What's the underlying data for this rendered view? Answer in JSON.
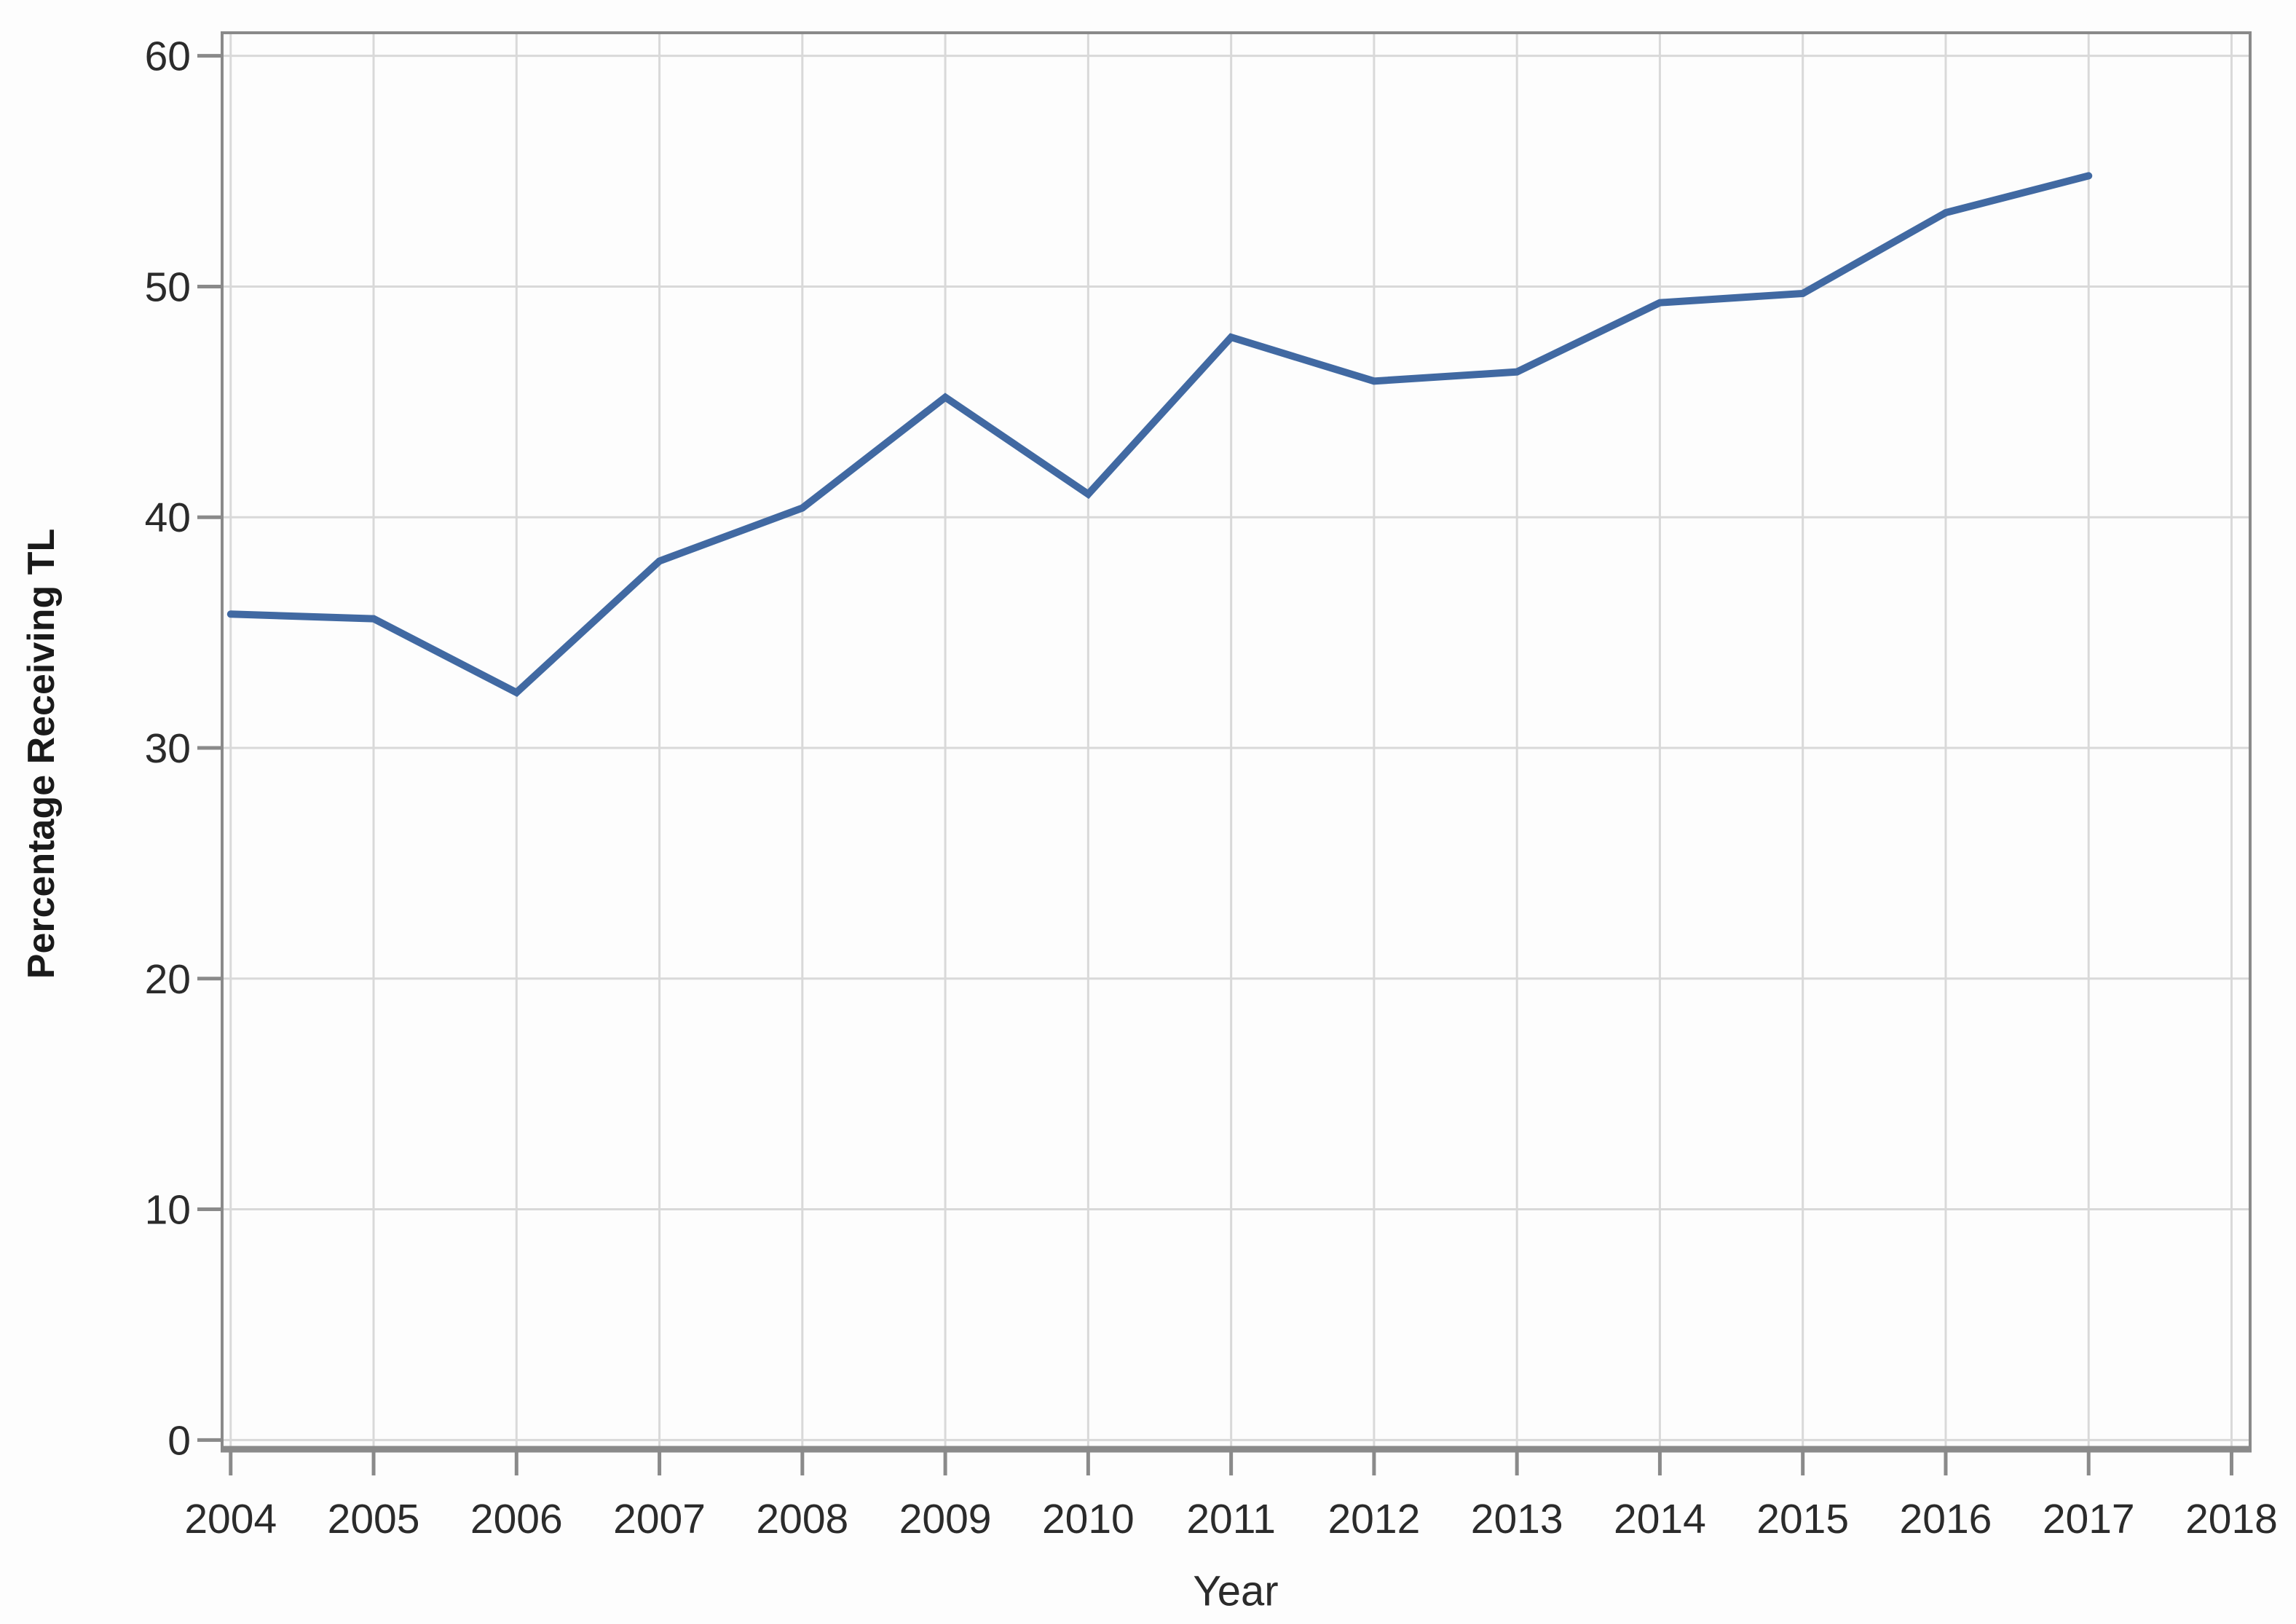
{
  "figure": {
    "background": "#fdfdfd"
  },
  "chart_data": {
    "type": "line",
    "title": "",
    "xlabel": "Year",
    "ylabel": "Percentage Receiving TL",
    "x": [
      2004,
      2005,
      2006,
      2007,
      2008,
      2009,
      2010,
      2011,
      2012,
      2013,
      2014,
      2015,
      2016,
      2017
    ],
    "values": [
      35.8,
      35.6,
      32.4,
      38.1,
      40.4,
      45.2,
      41.0,
      47.8,
      45.9,
      46.3,
      49.3,
      49.7,
      53.2,
      54.8
    ],
    "xticks": [
      2004,
      2005,
      2006,
      2007,
      2008,
      2009,
      2010,
      2011,
      2012,
      2013,
      2014,
      2015,
      2016,
      2017,
      2018
    ],
    "yticks": [
      0,
      10,
      20,
      30,
      40,
      50,
      60
    ],
    "xlim": [
      2003.94,
      2018.13
    ],
    "ylim": [
      -0.4,
      61.0
    ],
    "grid": true,
    "legend": "none",
    "line_color": "#4169a2",
    "grid_color": "#d9d9d9",
    "frame_color": "#8a8a8a",
    "tick_color": "#8a8a8a",
    "text_color": "#2b2b2b"
  }
}
